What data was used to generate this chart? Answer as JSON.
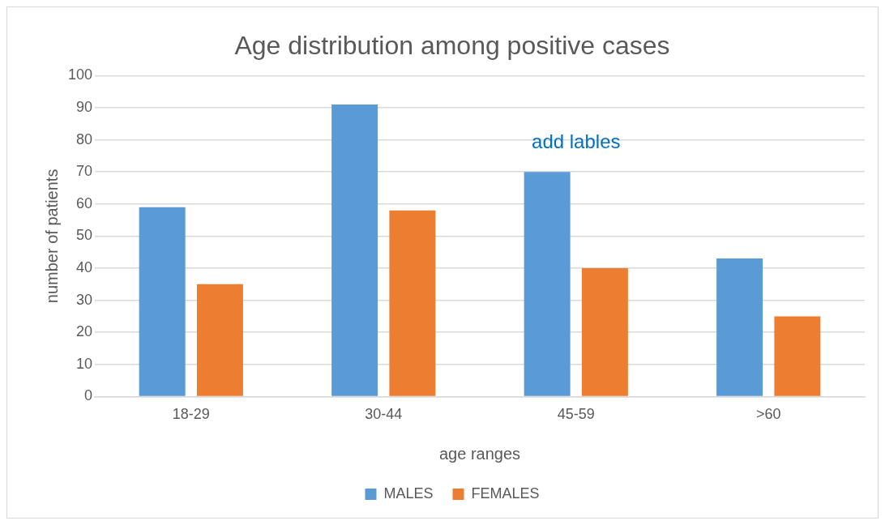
{
  "chart_data": {
    "type": "bar",
    "title": "Age distribution among positive cases",
    "xlabel": "age ranges",
    "ylabel": "number of patients",
    "categories": [
      "18-29",
      "30-44",
      "45-59",
      ">60"
    ],
    "series": [
      {
        "name": "MALES",
        "color": "#5b9bd5",
        "values": [
          59,
          91,
          70,
          43
        ]
      },
      {
        "name": "FEMALES",
        "color": "#ed7d31",
        "values": [
          35,
          58,
          40,
          25
        ]
      }
    ],
    "ylim": [
      0,
      100
    ],
    "yticks": [
      0,
      10,
      20,
      30,
      40,
      50,
      60,
      70,
      80,
      90,
      100
    ],
    "grid": "y",
    "legend": "bottom",
    "annotations": [
      "add lables"
    ]
  }
}
